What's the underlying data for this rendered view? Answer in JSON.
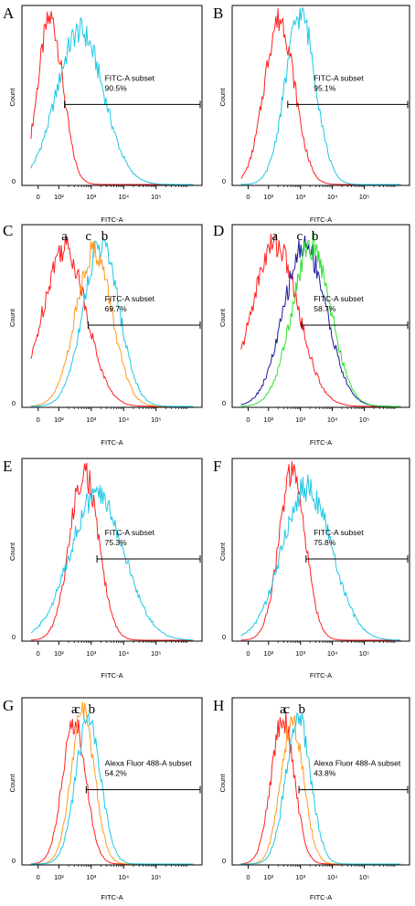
{
  "chart_data": [
    {
      "panel": "A",
      "type": "histogram",
      "xlabel": "FITC-A",
      "ylabel": "Count",
      "ytick_zero": "0",
      "x_ticks": [
        "0",
        "10²",
        "10³",
        "10⁴",
        "10⁵"
      ],
      "gate": {
        "label": "FITC-A subset",
        "value": "90.5%",
        "range": [
          150,
          300000
        ]
      },
      "series": [
        {
          "color": "#ff2020",
          "peak": 55,
          "width": 0.14,
          "height": 0.95
        },
        {
          "color": "#1ec8e6",
          "peak": 450,
          "width": 0.26,
          "height": 0.88
        }
      ]
    },
    {
      "panel": "B",
      "type": "histogram",
      "xlabel": "FITC-A",
      "ylabel": "Count",
      "ytick_zero": "0",
      "x_ticks": [
        "0",
        "10²",
        "10³",
        "10⁴",
        "10⁵"
      ],
      "gate": {
        "label": "FITC-A subset",
        "value": "95.1%",
        "range": [
          400,
          300000
        ]
      },
      "series": [
        {
          "color": "#ff2020",
          "peak": 220,
          "width": 0.17,
          "height": 0.95
        },
        {
          "color": "#1ec8e6",
          "peak": 1000,
          "width": 0.17,
          "height": 0.98
        }
      ]
    },
    {
      "panel": "C",
      "type": "histogram",
      "xlabel": "FITC-A",
      "ylabel": "Count",
      "ytick_zero": "0",
      "x_ticks": [
        "0",
        "10²",
        "10³",
        "10⁴",
        "10⁵"
      ],
      "gate": {
        "label": "FITC-A subset",
        "value": "69.7%",
        "range": [
          800,
          300000
        ]
      },
      "series": [
        {
          "color": "#ff2020",
          "peak": 150,
          "width": 0.24,
          "height": 0.9,
          "letter": "a"
        },
        {
          "color": "#ff9a1e",
          "peak": 1200,
          "width": 0.2,
          "height": 0.88,
          "letter": "c"
        },
        {
          "color": "#1ec8e6",
          "peak": 2000,
          "width": 0.2,
          "height": 0.92,
          "letter": "b"
        }
      ]
    },
    {
      "panel": "D",
      "type": "histogram",
      "xlabel": "FITC-A",
      "ylabel": "Count",
      "ytick_zero": "0",
      "x_ticks": [
        "0",
        "10²",
        "10³",
        "10⁴",
        "10⁵"
      ],
      "gate": {
        "label": "FITC-A subset",
        "value": "58.7%",
        "range": [
          1100,
          300000
        ]
      },
      "series": [
        {
          "color": "#ff2020",
          "peak": 160,
          "width": 0.26,
          "height": 0.92,
          "letter": "a"
        },
        {
          "color": "#1a1aa0",
          "peak": 1400,
          "width": 0.24,
          "height": 0.91,
          "letter": "c"
        },
        {
          "color": "#30e030",
          "peak": 2200,
          "width": 0.22,
          "height": 0.91,
          "letter": "b"
        }
      ]
    },
    {
      "panel": "E",
      "type": "histogram",
      "xlabel": "FITC-A",
      "ylabel": "Count",
      "ytick_zero": "0",
      "x_ticks": [
        "0",
        "10²",
        "10³",
        "10⁴",
        "10⁵"
      ],
      "gate": {
        "label": "FITC-A subset",
        "value": "75.3%",
        "range": [
          1500,
          300000
        ]
      },
      "series": [
        {
          "color": "#ff2020",
          "peak": 600,
          "width": 0.16,
          "height": 0.95
        },
        {
          "color": "#1ec8e6",
          "peak": 1500,
          "width": 0.3,
          "height": 0.82
        }
      ]
    },
    {
      "panel": "F",
      "type": "histogram",
      "xlabel": "FITC-A",
      "ylabel": "Count",
      "ytick_zero": "0",
      "x_ticks": [
        "0",
        "10²",
        "10³",
        "10⁴",
        "10⁵"
      ],
      "gate": {
        "label": "FITC-A subset",
        "value": "75.8%",
        "range": [
          1500,
          300000
        ]
      },
      "series": [
        {
          "color": "#ff2020",
          "peak": 550,
          "width": 0.15,
          "height": 0.94
        },
        {
          "color": "#1ec8e6",
          "peak": 1600,
          "width": 0.28,
          "height": 0.86
        }
      ]
    },
    {
      "panel": "G",
      "type": "histogram",
      "xlabel": "FITC-A",
      "ylabel": "Count",
      "ytick_zero": "0",
      "x_ticks": [
        "0",
        "10²",
        "10³",
        "10⁴",
        "10⁵"
      ],
      "gate": {
        "label": "Alexa Fluor 488-A subset",
        "value": "54.2%",
        "range": [
          700,
          300000
        ]
      },
      "series": [
        {
          "color": "#ff2020",
          "peak": 300,
          "width": 0.13,
          "height": 0.88,
          "letter": "a"
        },
        {
          "color": "#ff9a1e",
          "peak": 550,
          "width": 0.13,
          "height": 0.94,
          "letter": "c"
        },
        {
          "color": "#1ec8e6",
          "peak": 800,
          "width": 0.14,
          "height": 0.88,
          "letter": "b"
        }
      ]
    },
    {
      "panel": "H",
      "type": "histogram",
      "xlabel": "FITC-A",
      "ylabel": "Count",
      "ytick_zero": "0",
      "x_ticks": [
        "0",
        "10²",
        "10³",
        "10⁴",
        "10⁵"
      ],
      "gate": {
        "label": "Alexa Fluor 488-A subset",
        "value": "43.8%",
        "range": [
          900,
          300000
        ]
      },
      "series": [
        {
          "color": "#ff2020",
          "peak": 280,
          "width": 0.13,
          "height": 0.9,
          "letter": "a"
        },
        {
          "color": "#ff9a1e",
          "peak": 550,
          "width": 0.13,
          "height": 0.87,
          "letter": "c"
        },
        {
          "color": "#1ec8e6",
          "peak": 850,
          "width": 0.14,
          "height": 0.9,
          "letter": "b"
        }
      ]
    }
  ]
}
